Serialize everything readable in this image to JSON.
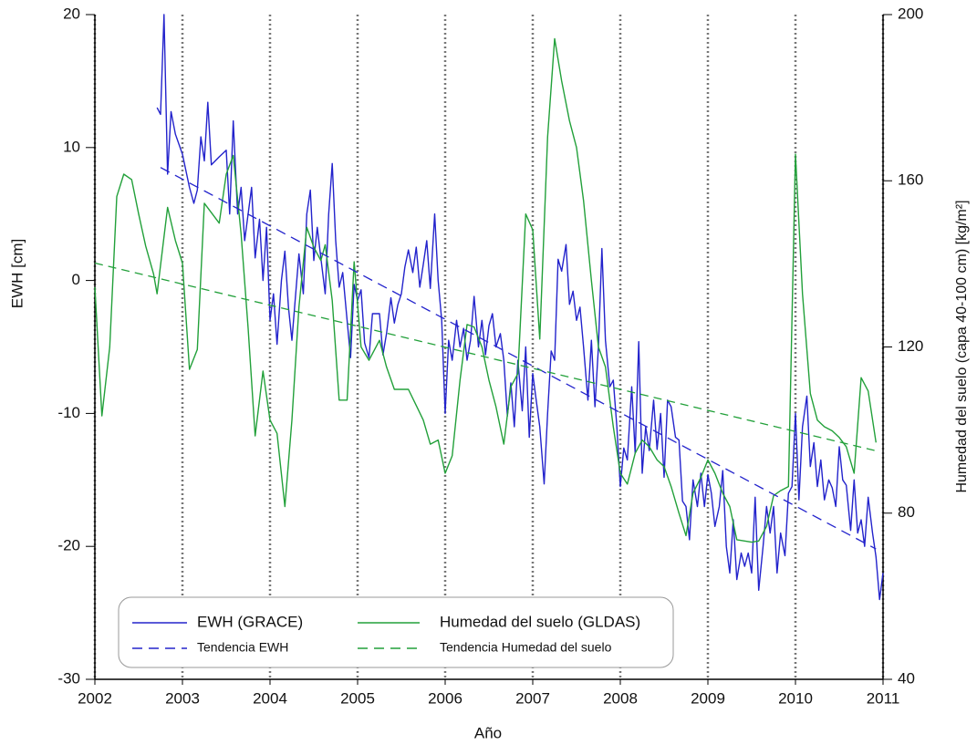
{
  "chart_data": {
    "type": "line",
    "xlabel": "Año",
    "ylabel": "EWH [cm]",
    "y2label": "Humedad del suelo (capa 40-100 cm) [kg/m²]",
    "xlim": [
      2002,
      2011
    ],
    "xticks": [
      2002,
      2003,
      2004,
      2005,
      2006,
      2007,
      2008,
      2009,
      2010,
      2011
    ],
    "ylim": [
      -30,
      20
    ],
    "yticks": [
      -30,
      -20,
      -10,
      0,
      10,
      20
    ],
    "y2lim": [
      40,
      200
    ],
    "y2ticks": [
      40,
      80,
      120,
      160,
      200
    ],
    "grid": "x",
    "legend": "lower left",
    "series": [
      {
        "name": "EWH (GRACE)",
        "color": "#2323cc",
        "axis": "y",
        "dashed": false,
        "x": [
          2002.71,
          2002.75,
          2002.79,
          2002.83,
          2002.87,
          2002.92,
          2003.0,
          2003.08,
          2003.13,
          2003.17,
          2003.21,
          2003.25,
          2003.29,
          2003.33,
          2003.42,
          2003.5,
          2003.54,
          2003.58,
          2003.63,
          2003.67,
          2003.71,
          2003.79,
          2003.83,
          2003.88,
          2003.92,
          2003.96,
          2004.0,
          2004.04,
          2004.08,
          2004.13,
          2004.17,
          2004.21,
          2004.25,
          2004.33,
          2004.38,
          2004.42,
          2004.46,
          2004.5,
          2004.54,
          2004.58,
          2004.63,
          2004.67,
          2004.71,
          2004.75,
          2004.79,
          2004.83,
          2004.88,
          2004.92,
          2004.96,
          2005.0,
          2005.04,
          2005.08,
          2005.13,
          2005.17,
          2005.25,
          2005.29,
          2005.33,
          2005.38,
          2005.42,
          2005.46,
          2005.5,
          2005.54,
          2005.58,
          2005.63,
          2005.67,
          2005.71,
          2005.75,
          2005.79,
          2005.83,
          2005.88,
          2005.92,
          2005.96,
          2006.0,
          2006.04,
          2006.08,
          2006.13,
          2006.17,
          2006.21,
          2006.25,
          2006.29,
          2006.33,
          2006.38,
          2006.42,
          2006.46,
          2006.5,
          2006.54,
          2006.58,
          2006.63,
          2006.67,
          2006.71,
          2006.75,
          2006.79,
          2006.83,
          2006.88,
          2006.92,
          2006.96,
          2007.0,
          2007.04,
          2007.08,
          2007.13,
          2007.17,
          2007.21,
          2007.25,
          2007.29,
          2007.33,
          2007.38,
          2007.42,
          2007.46,
          2007.5,
          2007.54,
          2007.58,
          2007.63,
          2007.67,
          2007.71,
          2007.75,
          2007.79,
          2007.83,
          2007.88,
          2007.92,
          2007.96,
          2008.0,
          2008.04,
          2008.08,
          2008.13,
          2008.17,
          2008.21,
          2008.25,
          2008.29,
          2008.33,
          2008.38,
          2008.42,
          2008.46,
          2008.5,
          2008.54,
          2008.58,
          2008.63,
          2008.67,
          2008.71,
          2008.75,
          2008.79,
          2008.83,
          2008.88,
          2008.92,
          2008.96,
          2009.0,
          2009.04,
          2009.08,
          2009.13,
          2009.17,
          2009.21,
          2009.25,
          2009.29,
          2009.33,
          2009.38,
          2009.42,
          2009.46,
          2009.5,
          2009.54,
          2009.58,
          2009.63,
          2009.67,
          2009.71,
          2009.75,
          2009.79,
          2009.83,
          2009.88,
          2009.92,
          2009.96,
          2010.0,
          2010.04,
          2010.08,
          2010.13,
          2010.17,
          2010.21,
          2010.25,
          2010.29,
          2010.33,
          2010.38,
          2010.42,
          2010.46,
          2010.5,
          2010.54,
          2010.58,
          2010.63,
          2010.67,
          2010.71,
          2010.75,
          2010.79,
          2010.83,
          2010.88,
          2010.92,
          2010.96,
          2011.0
        ],
        "values": [
          13,
          12.5,
          20,
          8,
          12.7,
          11,
          9.5,
          7,
          5.8,
          6.8,
          10.8,
          9,
          13.4,
          8.7,
          9.3,
          9.8,
          5,
          12,
          5,
          7,
          3,
          7,
          1.7,
          4.6,
          0,
          4,
          -3,
          -1,
          -4.8,
          0,
          2.2,
          -2,
          -4.5,
          2,
          -1,
          5,
          6.8,
          1.5,
          4,
          1.7,
          -1,
          5,
          8.8,
          3,
          -0.5,
          0.6,
          -3,
          -5.8,
          -0.3,
          -1.5,
          -0.7,
          -4.7,
          -5.8,
          -2.5,
          -2.5,
          -5.6,
          -4,
          -1.3,
          -3.2,
          -1.8,
          -1,
          1,
          2.3,
          0.6,
          2.5,
          -0.5,
          1.2,
          3,
          -0.6,
          5,
          0,
          -3,
          -10,
          -4.5,
          -6,
          -3,
          -5,
          -3.6,
          -6,
          -4.5,
          -1.2,
          -5,
          -3,
          -5.6,
          -3.4,
          -2.5,
          -5,
          -4,
          -6,
          -10.2,
          -7.7,
          -11,
          -6,
          -9.8,
          -5,
          -11.8,
          -7,
          -9,
          -11,
          -15.3,
          -10,
          -5.3,
          -6,
          1.6,
          0.7,
          2.7,
          -1.8,
          -0.8,
          -3,
          -2,
          -5,
          -9,
          -4.5,
          -9.5,
          -5,
          2.4,
          -4.5,
          -8,
          -7.5,
          -11,
          -15.5,
          -12.6,
          -13.5,
          -8,
          -13,
          -4.6,
          -14.5,
          -11,
          -12.8,
          -9,
          -12.7,
          -10,
          -14.8,
          -9,
          -9.5,
          -11.8,
          -12,
          -16.6,
          -17,
          -19.5,
          -15,
          -17,
          -14.5,
          -17,
          -14.6,
          -16,
          -18.5,
          -17,
          -14.3,
          -20,
          -22,
          -18,
          -22.5,
          -20.5,
          -21.5,
          -20.5,
          -22,
          -16.3,
          -23.3,
          -20,
          -17,
          -19,
          -17,
          -22,
          -19,
          -20.7,
          -16,
          -15.5,
          -10,
          -16.5,
          -11,
          -8.7,
          -14,
          -12.2,
          -15.5,
          -13.5,
          -16.5,
          -15,
          -15.6,
          -17,
          -12.5,
          -15,
          -15.4,
          -18.8,
          -15,
          -19,
          -18,
          -20,
          -16.3,
          -19,
          -20.8,
          -24,
          -22
        ]
      },
      {
        "name": "Humedad del suelo (GLDAS)",
        "color": "#22a03a",
        "axis": "y2",
        "dashed": false,
        "x": [
          2002.0,
          2002.08,
          2002.17,
          2002.25,
          2002.33,
          2002.42,
          2002.5,
          2002.58,
          2002.67,
          2002.71,
          2002.83,
          2002.92,
          2003.0,
          2003.08,
          2003.17,
          2003.25,
          2003.42,
          2003.5,
          2003.58,
          2003.67,
          2003.75,
          2003.83,
          2003.92,
          2004.0,
          2004.08,
          2004.17,
          2004.25,
          2004.33,
          2004.42,
          2004.5,
          2004.58,
          2004.63,
          2004.71,
          2004.79,
          2004.88,
          2004.96,
          2005.04,
          2005.13,
          2005.25,
          2005.33,
          2005.42,
          2005.58,
          2005.67,
          2005.75,
          2005.83,
          2005.92,
          2006.0,
          2006.08,
          2006.17,
          2006.25,
          2006.33,
          2006.42,
          2006.5,
          2006.58,
          2006.67,
          2006.75,
          2006.83,
          2006.92,
          2007.0,
          2007.08,
          2007.17,
          2007.25,
          2007.33,
          2007.42,
          2007.5,
          2007.58,
          2007.67,
          2007.75,
          2007.83,
          2007.92,
          2008.0,
          2008.08,
          2008.17,
          2008.25,
          2008.33,
          2008.42,
          2008.5,
          2008.58,
          2008.67,
          2008.75,
          2008.83,
          2008.92,
          2009.0,
          2009.08,
          2009.17,
          2009.25,
          2009.33,
          2009.42,
          2009.5,
          2009.58,
          2009.67,
          2009.75,
          2009.83,
          2009.92,
          2010.0,
          2010.08,
          2010.17,
          2010.25,
          2010.33,
          2010.42,
          2010.5,
          2010.58,
          2010.67,
          2010.75,
          2010.83,
          2010.92
        ],
        "values": [
          134.4,
          103.4,
          120,
          156.2,
          161.6,
          160.3,
          152,
          144.3,
          137.6,
          132.8,
          153.6,
          145.6,
          140.2,
          114.6,
          119.4,
          154.6,
          149.8,
          161.6,
          166.1,
          147.2,
          124.5,
          98.6,
          114.2,
          102.4,
          99.2,
          81.6,
          102.4,
          129.6,
          148.8,
          144,
          140.8,
          144.6,
          131.2,
          107.2,
          107.2,
          140.5,
          120,
          116.8,
          121.6,
          115.2,
          109.8,
          109.8,
          105.9,
          102.4,
          96.6,
          97.6,
          89.6,
          93.8,
          112,
          125.4,
          124.8,
          120,
          112,
          105.6,
          96.6,
          110.4,
          113.6,
          152,
          148.2,
          121.9,
          170.6,
          194.2,
          184,
          174.4,
          168,
          155.2,
          136,
          120,
          115.2,
          100.8,
          89.6,
          87,
          94.4,
          97.6,
          96,
          92.8,
          91.2,
          86.4,
          80,
          74.6,
          84.8,
          88.6,
          92.8,
          89.6,
          84.8,
          81.6,
          73.6,
          73.3,
          73,
          73.3,
          76.8,
          84.2,
          85.4,
          86.4,
          166.4,
          132.8,
          108.8,
          102.4,
          100.8,
          99.8,
          98.2,
          96,
          89.6,
          112.6,
          109.4,
          97
        ]
      },
      {
        "name": "Tendencia EWH",
        "color": "#2323cc",
        "axis": "y",
        "dashed": true,
        "x": [
          2002.75,
          2010.92
        ],
        "values": [
          8.5,
          -20.2
        ]
      },
      {
        "name": "Tendencia Humedad del suelo",
        "color": "#22a03a",
        "axis": "y2",
        "dashed": true,
        "x": [
          2002.0,
          2010.92
        ],
        "values": [
          140.2,
          95
        ]
      }
    ]
  }
}
